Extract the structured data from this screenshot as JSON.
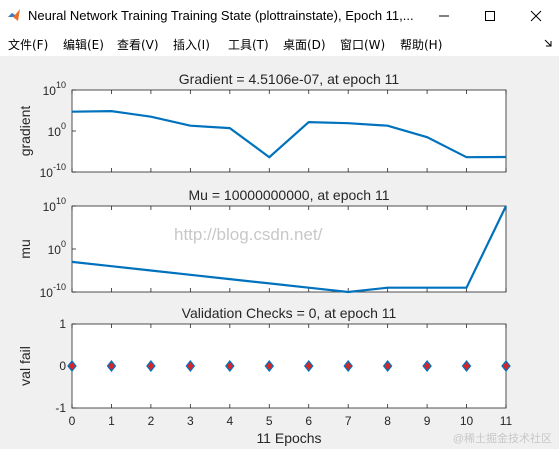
{
  "window": {
    "title": "Neural Network Training Training State (plottrainstate), Epoch 11,...",
    "minimize_icon": "minimize-icon",
    "maximize_icon": "maximize-icon",
    "close_icon": "close-icon"
  },
  "menu": {
    "items": [
      "文件(F)",
      "编辑(E)",
      "查看(V)",
      "插入(I)",
      "工具(T)",
      "桌面(D)",
      "窗口(W)",
      "帮助(H)"
    ]
  },
  "watermark": "http://blog.csdn.net/",
  "corner_watermark": "@稀土掘金技术社区",
  "colors": {
    "line": "#0072bd",
    "marker_fill": "#d62728",
    "marker_edge": "#0072bd"
  },
  "chart_data": [
    {
      "type": "line",
      "title": "Gradient = 4.5106e-07, at epoch 11",
      "ylabel": "gradient",
      "yscale": "log",
      "ylim": [
        1e-10,
        10000000000.0
      ],
      "yticks": [
        "10",
        "10",
        "10"
      ],
      "ytick_exponents": [
        "10",
        "0",
        "-10"
      ],
      "xlim": [
        0,
        11
      ],
      "x": [
        0,
        1,
        2,
        3,
        4,
        5,
        6,
        7,
        8,
        9,
        10,
        11
      ],
      "y": [
        50000.0,
        70000.0,
        3000.0,
        20.0,
        5.0,
        4e-07,
        150.0,
        80.0,
        20.0,
        0.03,
        4e-07,
        4.5106e-07
      ]
    },
    {
      "type": "line",
      "title": "Mu = 10000000000, at epoch 11",
      "ylabel": "mu",
      "yscale": "log",
      "ylim": [
        1e-10,
        10000000000.0
      ],
      "yticks": [
        "10",
        "10",
        "10"
      ],
      "ytick_exponents": [
        "10",
        "0",
        "-10"
      ],
      "xlim": [
        0,
        11
      ],
      "x": [
        0,
        1,
        2,
        3,
        4,
        5,
        6,
        7,
        8,
        9,
        10,
        11
      ],
      "y": [
        0.001,
        0.0001,
        1e-05,
        1e-06,
        1e-07,
        1e-08,
        1e-09,
        1e-10,
        1e-09,
        1e-09,
        1e-09,
        10000000000.0
      ]
    },
    {
      "type": "scatter",
      "title": "Validation Checks = 0, at epoch 11",
      "ylabel": "val fail",
      "xlabel": "11 Epochs",
      "ylim": [
        -1,
        1
      ],
      "yticks": [
        "1",
        "0",
        "-1"
      ],
      "xlim": [
        0,
        11
      ],
      "xticks": [
        "0",
        "1",
        "2",
        "3",
        "4",
        "5",
        "6",
        "7",
        "8",
        "9",
        "10",
        "11"
      ],
      "x": [
        0,
        1,
        2,
        3,
        4,
        5,
        6,
        7,
        8,
        9,
        10,
        11
      ],
      "y": [
        0,
        0,
        0,
        0,
        0,
        0,
        0,
        0,
        0,
        0,
        0,
        0
      ]
    }
  ]
}
